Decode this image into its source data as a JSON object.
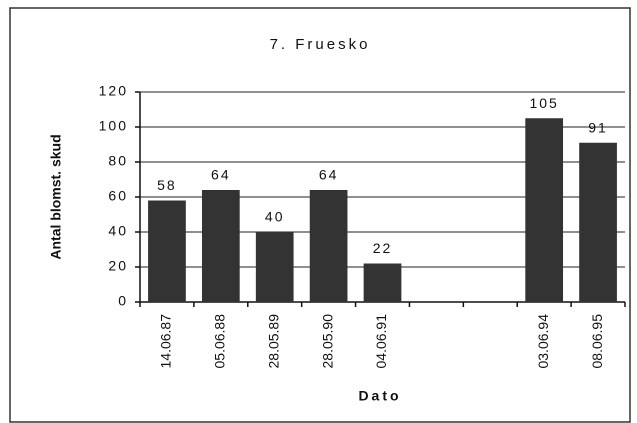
{
  "chart_data": {
    "type": "bar",
    "title": "7. Fruesko",
    "x_label": "Dato",
    "y_label": "Antal blomst. skud",
    "categories": [
      "14.06.87",
      "05.06.88",
      "28.05.89",
      "28.05.90",
      "04.06.91",
      null,
      null,
      "03.06.94",
      "08.06.95"
    ],
    "values": [
      58,
      64,
      40,
      64,
      22,
      null,
      null,
      105,
      91
    ],
    "color": "#333333",
    "ylim": [
      0,
      120
    ],
    "yticks": [
      0,
      20,
      40,
      60,
      80,
      100,
      120
    ],
    "grid": true
  }
}
